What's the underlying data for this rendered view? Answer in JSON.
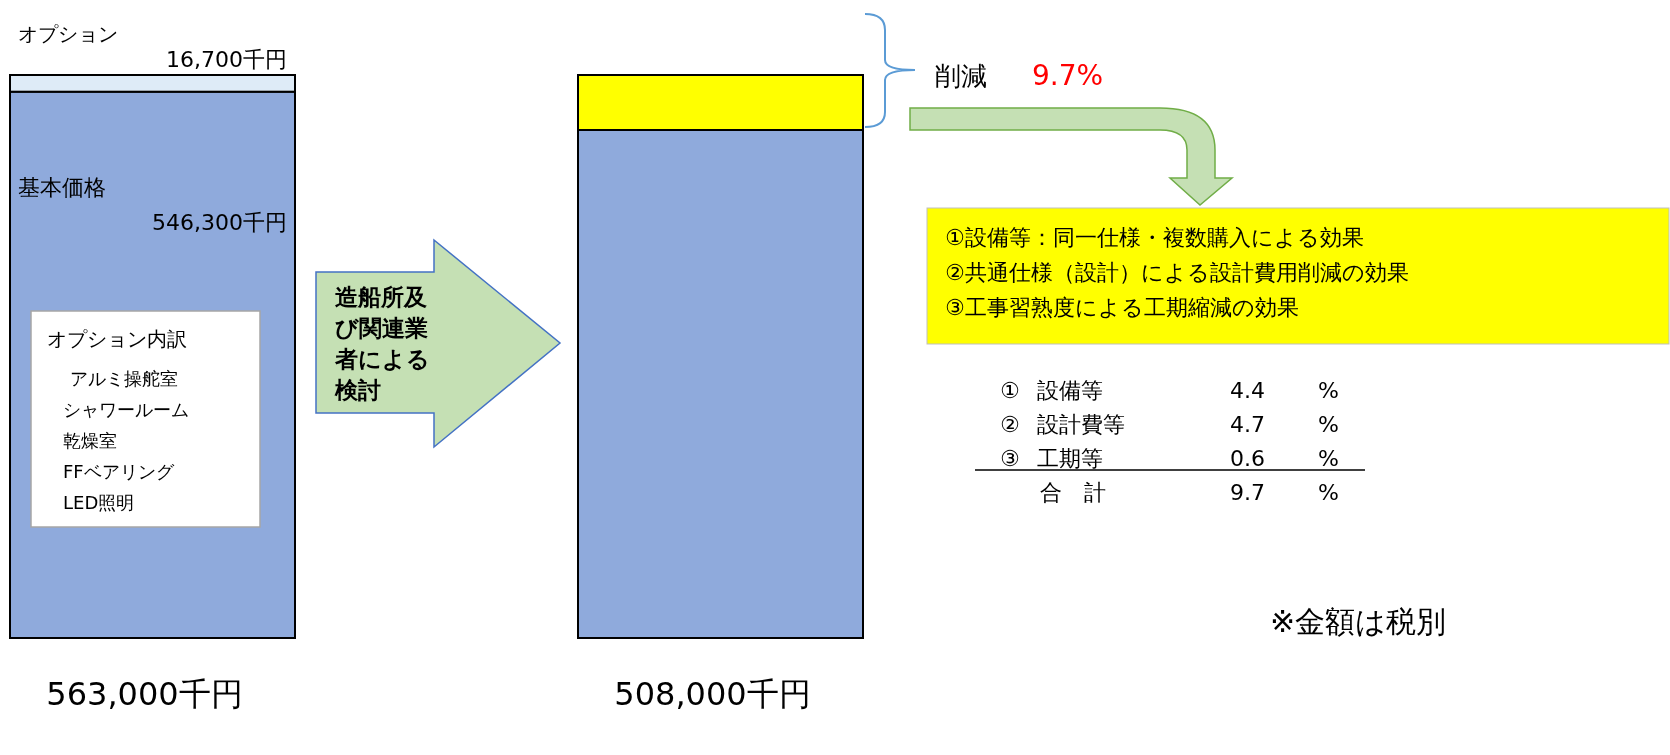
{
  "chart_data": {
    "type": "bar",
    "stacked": true,
    "categories": [
      null,
      null
    ],
    "series": [
      {
        "name": "基本価格",
        "color": "#8faadc",
        "values": [
          546300,
          508000
        ],
        "value_labels": [
          "546,300千円",
          "508,000千円"
        ]
      },
      {
        "name": "オプション",
        "color": "#deebf7",
        "values": [
          16700,
          null
        ],
        "value_labels": [
          "16,700千円",
          null
        ]
      },
      {
        "color": "#ffff00",
        "values": [
          null,
          55000
        ]
      }
    ],
    "totals": [
      "563,000千円",
      null
    ],
    "annotations": [
      "削減",
      "9.7%",
      "造船所及び関連業者による検討",
      "オプション内訳",
      "アルミ操舵室",
      "シャワールーム",
      "乾燥室",
      "FFベアリング",
      "LED照明",
      "①設備等：同一仕様・複数購入による効果",
      "②共通仕様（設計）による設計費用削減の効果",
      "③工事習熟度による工期縮減の効果",
      "①  設備等  4.4  %",
      "②  設計費等  4.7  %",
      "③  工期等  0.6  %",
      "合　計  9.7  %",
      "※金額は税別"
    ]
  }
}
